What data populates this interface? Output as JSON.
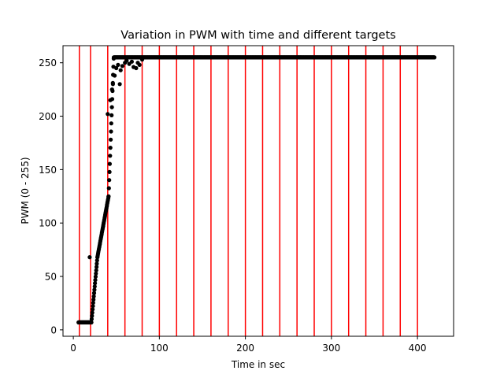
{
  "chart_data": {
    "type": "scatter",
    "title": "Variation in PWM with time and different targets",
    "xlabel": "Time in sec",
    "ylabel": "PWM (0 - 255)",
    "xlim": [
      -12,
      442
    ],
    "ylim": [
      -6,
      266
    ],
    "xticks": [
      0,
      100,
      200,
      300,
      400
    ],
    "yticks": [
      0,
      50,
      100,
      150,
      200,
      250
    ],
    "grid": false,
    "point_color": "#000000",
    "vline_color": "#ff0000",
    "target_change_times": [
      7,
      20,
      40,
      60,
      80,
      100,
      120,
      140,
      160,
      180,
      200,
      220,
      240,
      260,
      280,
      300,
      320,
      340,
      360,
      380,
      400
    ],
    "series": [
      {
        "segments": [
          {
            "kind": "flat",
            "x_start": 6,
            "x_end": 21,
            "y": 7
          },
          {
            "kind": "ramp",
            "x_start": 21,
            "x_end": 28,
            "y_start": 7,
            "y_end": 68
          },
          {
            "kind": "ramp",
            "x_start": 28,
            "x_end": 41,
            "y_start": 68,
            "y_end": 125
          },
          {
            "kind": "ramp",
            "x_start": 41,
            "x_end": 47,
            "y_start": 125,
            "y_end": 255
          },
          {
            "kind": "flat",
            "x_start": 47,
            "x_end": 420,
            "y": 255
          }
        ],
        "outliers": [
          [
            19,
            68
          ],
          [
            40,
            202
          ],
          [
            43,
            215
          ],
          [
            45,
            225
          ],
          [
            46,
            230
          ],
          [
            48,
            238
          ],
          [
            50,
            245
          ],
          [
            52,
            248
          ],
          [
            54,
            230
          ],
          [
            55,
            243
          ],
          [
            57,
            247
          ],
          [
            60,
            250
          ],
          [
            62,
            252
          ],
          [
            65,
            249
          ],
          [
            68,
            251
          ],
          [
            70,
            246
          ],
          [
            73,
            245
          ],
          [
            75,
            250
          ],
          [
            77,
            248
          ],
          [
            80,
            253
          ]
        ]
      }
    ]
  }
}
